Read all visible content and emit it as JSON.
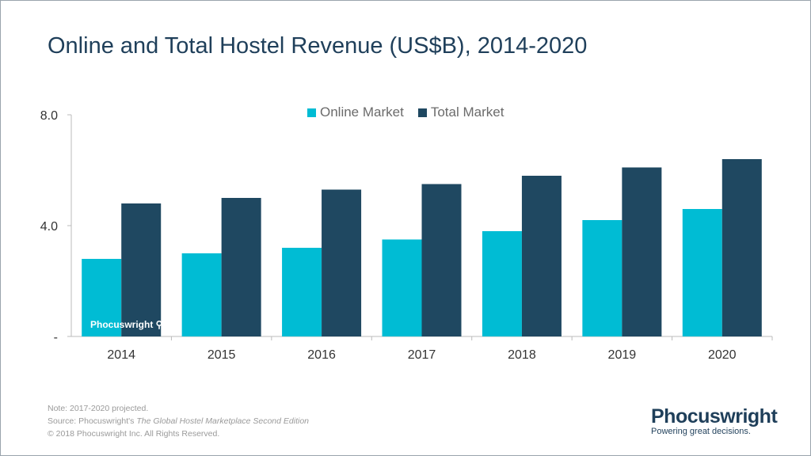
{
  "chart_data": {
    "type": "bar",
    "title": "Online and Total Hostel Revenue (US$B), 2014-2020",
    "categories": [
      "2014",
      "2015",
      "2016",
      "2017",
      "2018",
      "2019",
      "2020"
    ],
    "series": [
      {
        "name": "Online Market",
        "color": "#00bcd4",
        "values": [
          2.8,
          3.0,
          3.2,
          3.5,
          3.8,
          4.2,
          4.6
        ]
      },
      {
        "name": "Total Market",
        "color": "#1f4861",
        "values": [
          4.8,
          5.0,
          5.3,
          5.5,
          5.8,
          6.1,
          6.4
        ]
      }
    ],
    "ylim": [
      0,
      8
    ],
    "yticks": [
      {
        "value": 0,
        "label": "-"
      },
      {
        "value": 4,
        "label": "4.0"
      },
      {
        "value": 8,
        "label": "8.0"
      }
    ],
    "legend": "top-center",
    "grid": false
  },
  "footer": {
    "note": "Note: 2017-2020 projected.",
    "source_prefix": "Source: Phocuswright's ",
    "source_title": "The Global Hostel Marketplace Second Edition",
    "copyright": "© 2018 Phocuswright Inc. All Rights Reserved."
  },
  "logo": {
    "name": "Phocuswright",
    "tagline": "Powering great decisions."
  },
  "watermark": "Phocuswright"
}
